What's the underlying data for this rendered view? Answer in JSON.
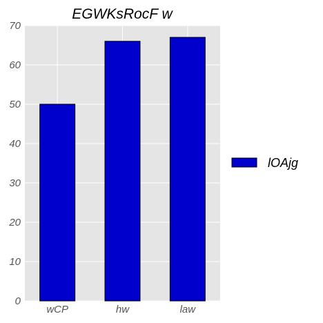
{
  "chart_data": {
    "type": "bar",
    "title": "EGWKsRocF w",
    "categories": [
      "wCP",
      "hw",
      "law"
    ],
    "series": [
      {
        "name": "lOAjg",
        "values": [
          50,
          66,
          67
        ]
      }
    ],
    "ylim": [
      0,
      70
    ],
    "yticks": [
      0,
      10,
      20,
      30,
      40,
      50,
      60,
      70
    ],
    "xlabel": "",
    "ylabel": "",
    "grid": true,
    "legend_position": "right",
    "colors": {
      "bar": "#0000cc",
      "plot_background": "#e5e5e5",
      "grid": "#ffffff"
    }
  }
}
